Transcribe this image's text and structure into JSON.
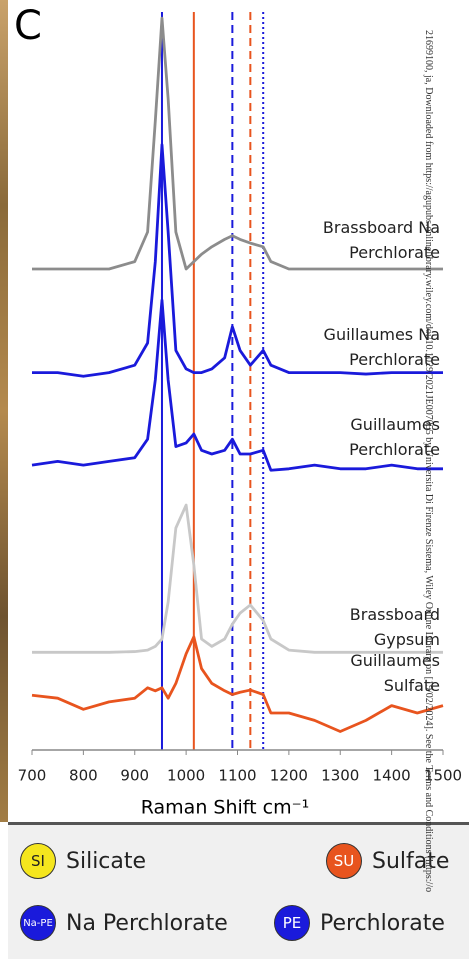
{
  "chart_data": {
    "type": "line",
    "panel_label": "C",
    "x_label": "Raman Shift cm⁻¹",
    "x": [
      700,
      750,
      800,
      850,
      900,
      925,
      940,
      953,
      965,
      980,
      1000,
      1015,
      1030,
      1050,
      1075,
      1090,
      1105,
      1125,
      1150,
      1165,
      1200,
      1250,
      1300,
      1350,
      1400,
      1450,
      1500
    ],
    "series": [
      {
        "name": "Brassboard Na Perchlorate",
        "color": "#8c8c8c",
        "values": [
          65,
          65,
          65,
          65,
          66,
          70,
          85,
          98.9,
          88,
          70,
          65,
          66,
          67,
          68,
          69,
          69.5,
          69,
          68.5,
          68,
          66,
          65,
          65,
          65,
          65,
          65,
          65,
          65
        ]
      },
      {
        "name": "Guillaumes Na Perchlorate",
        "color": "#1a1adb",
        "values": [
          51,
          51,
          50.5,
          51,
          52,
          55,
          66,
          81.8,
          70,
          54,
          51.5,
          51,
          51,
          51.5,
          53,
          57.2,
          54,
          52,
          54,
          52,
          51,
          51,
          51,
          50.8,
          51,
          51,
          51
        ]
      },
      {
        "name": "Guillaumes Perchlorate",
        "color": "#1a1adb",
        "values": [
          38.5,
          39,
          38.5,
          39,
          39.5,
          42,
          50,
          60.8,
          50,
          41,
          41.5,
          42.7,
          40.5,
          40,
          40.5,
          42,
          40,
          40,
          40.5,
          37.8,
          38,
          38.5,
          38,
          38,
          38.5,
          38,
          38
        ]
      },
      {
        "name": "Brassboard Gypsum",
        "color": "#c8c8c8",
        "values": [
          13.2,
          13.2,
          13.2,
          13.2,
          13.3,
          13.5,
          14,
          15,
          20,
          30,
          33.1,
          25,
          15,
          14,
          15,
          17,
          18.5,
          19.6,
          17.5,
          15,
          13.5,
          13.2,
          13.2,
          13.2,
          13.2,
          13.2,
          13.2
        ]
      },
      {
        "name": "Guillaumes Sulfate",
        "color": "#e8541e",
        "values": [
          7.4,
          7,
          5.5,
          6.5,
          7,
          8.4,
          8,
          8.4,
          7,
          9,
          13,
          15.3,
          11,
          9,
          8,
          7.5,
          7.8,
          8.1,
          7.5,
          5,
          5,
          4,
          2.5,
          4,
          6,
          5,
          6
        ]
      }
    ],
    "vlines": [
      {
        "x": 953,
        "color": "#1a1adb",
        "style": "solid"
      },
      {
        "x": 1015,
        "color": "#e8541e",
        "style": "solid"
      },
      {
        "x": 1090,
        "color": "#1a1adb",
        "style": "dashed"
      },
      {
        "x": 1125,
        "color": "#e8541e",
        "style": "dashed"
      },
      {
        "x": 1150,
        "color": "#1a1adb",
        "style": "dotted"
      }
    ],
    "xlim": [
      700,
      1500
    ],
    "xticks": [
      700,
      800,
      900,
      1000,
      1100,
      1200,
      1300,
      1400,
      1500
    ],
    "ylim": [
      0,
      100
    ]
  },
  "legend_items": [
    {
      "icon": "SI",
      "label": "Silicate",
      "color": "#f5e61e",
      "text_color": "#222"
    },
    {
      "icon": "SU",
      "label": "Sulfate",
      "color": "#e8541e",
      "text_color": "#fff"
    },
    {
      "icon": "Na-PE",
      "label": "Na Perchlorate",
      "color": "#1a1adb",
      "text_color": "#fff"
    },
    {
      "icon": "PE",
      "label": "Perchlorate",
      "color": "#1a1adb",
      "text_color": "#fff"
    }
  ],
  "watermark": "21699100, ja, Downloaded from https://agupubs.onlinelibrary.wiley.com/doi/10.1029/2021JE007055 by Universita Di Firenze Sistema, Wiley Online Library on [19/02/2024]. See the Terms and Conditions (https://o"
}
